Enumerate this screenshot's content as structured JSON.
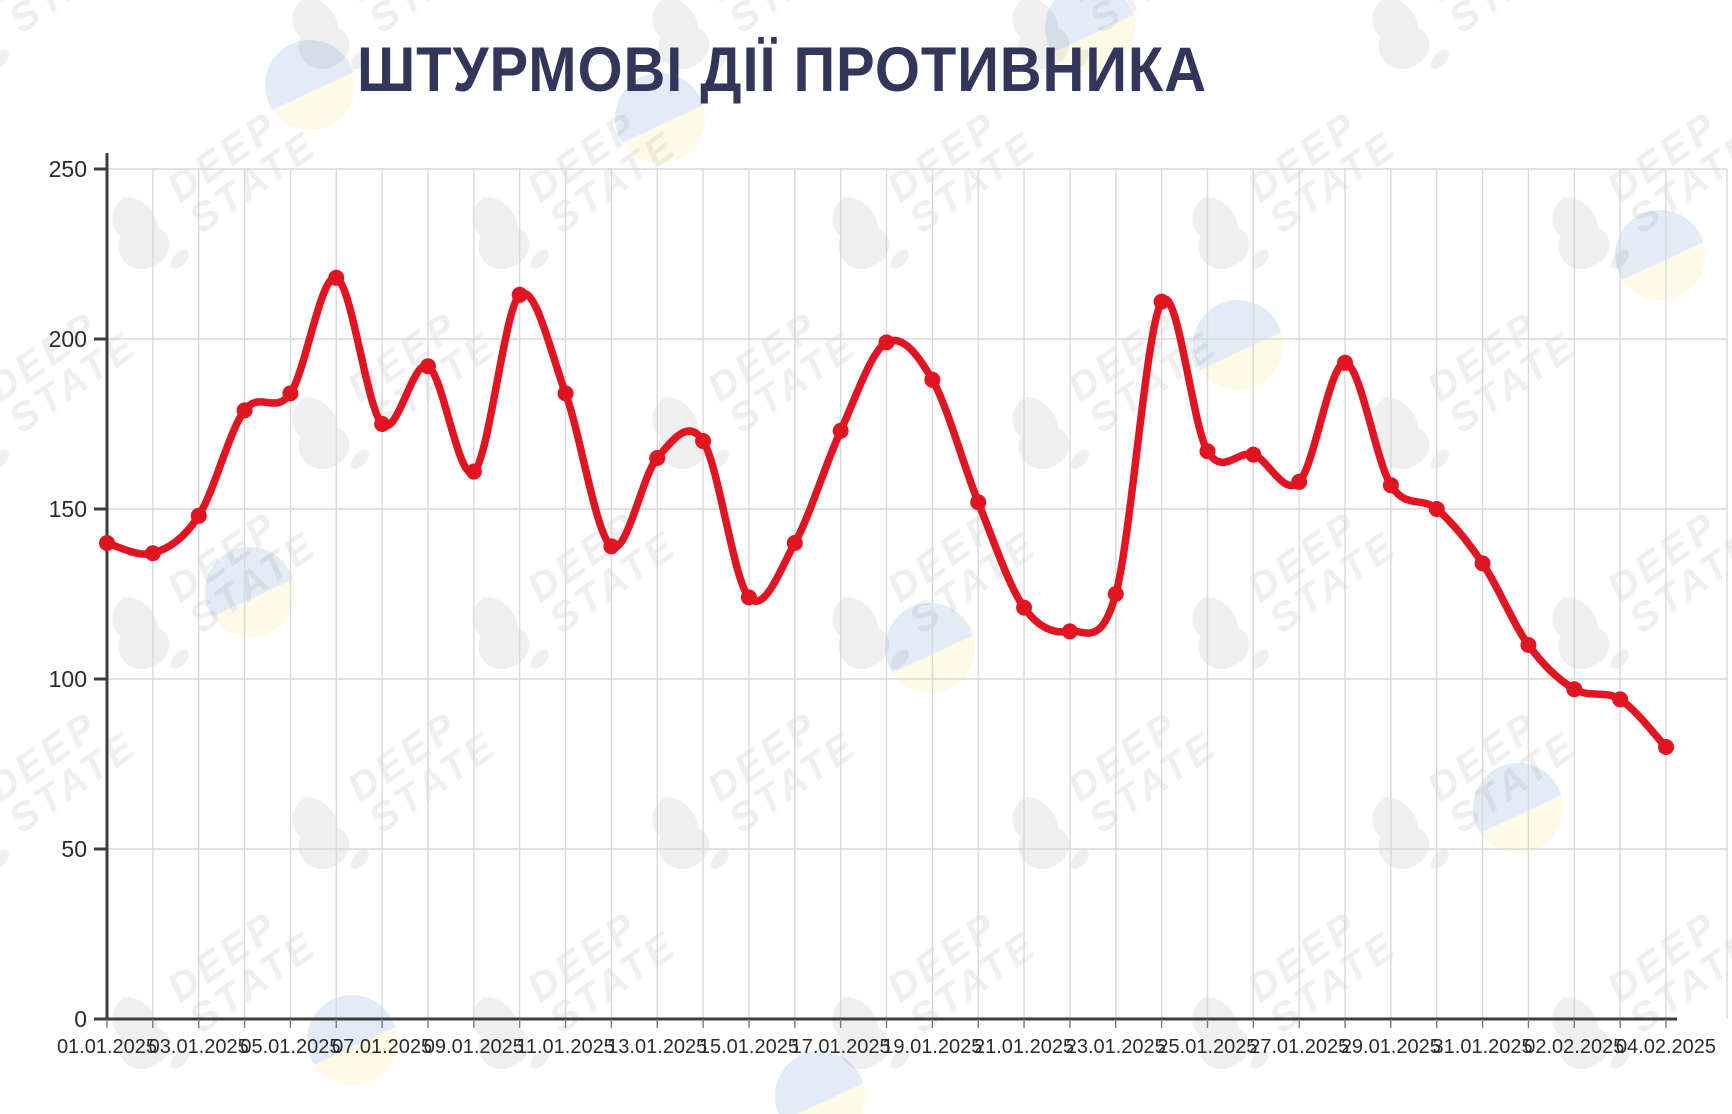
{
  "title": "ШТУРМОВІ ДІЇ ПРОТИВНИКА",
  "watermark": {
    "line1": "DEEP",
    "line2": "STATE"
  },
  "chart_data": {
    "type": "line",
    "title": "ШТУРМОВІ ДІЇ ПРОТИВНИКА",
    "x": [
      "01.01.2025",
      "02.01.2025",
      "03.01.2025",
      "04.01.2025",
      "05.01.2025",
      "06.01.2025",
      "07.01.2025",
      "08.01.2025",
      "09.01.2025",
      "10.01.2025",
      "11.01.2025",
      "12.01.2025",
      "13.01.2025",
      "14.01.2025",
      "15.01.2025",
      "16.01.2025",
      "17.01.2025",
      "18.01.2025",
      "19.01.2025",
      "20.01.2025",
      "21.01.2025",
      "22.01.2025",
      "23.01.2025",
      "24.01.2025",
      "25.01.2025",
      "26.01.2025",
      "27.01.2025",
      "28.01.2025",
      "29.01.2025",
      "30.01.2025",
      "31.01.2025",
      "01.02.2025",
      "02.02.2025",
      "03.02.2025",
      "04.02.2025"
    ],
    "values": [
      140,
      137,
      148,
      179,
      184,
      218,
      175,
      192,
      161,
      213,
      184,
      139,
      165,
      170,
      124,
      140,
      173,
      199,
      188,
      152,
      121,
      114,
      125,
      211,
      167,
      166,
      158,
      193,
      157,
      150,
      134,
      110,
      97,
      94,
      80
    ],
    "x_tick_labels": [
      "01.01.2025",
      "03.01.2025",
      "05.01.2025",
      "07.01.2025",
      "09.01.2025",
      "11.01.2025",
      "13.01.2025",
      "15.01.2025",
      "17.01.2025",
      "19.01.2025",
      "21.01.2025",
      "23.01.2025",
      "25.01.2025",
      "27.01.2025",
      "29.01.2025",
      "31.01.2025",
      "02.02.2025",
      "04.02.2025"
    ],
    "yticks": [
      0,
      50,
      100,
      150,
      200,
      250
    ],
    "ylim": [
      0,
      250
    ],
    "xlabel": "",
    "ylabel": "",
    "grid": "on",
    "legend": "none",
    "colors": {
      "line": "#e11522",
      "point": "#e11522",
      "title": "#31365a",
      "grid": "#d9d9d9",
      "axis": "#3c3c3c",
      "tick_label": "#2b2b2b"
    }
  }
}
